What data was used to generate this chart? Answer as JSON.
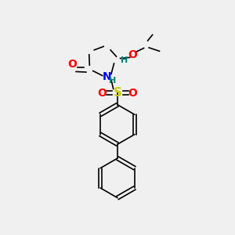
{
  "background_color": "#f0f0f0",
  "bond_color": "#000000",
  "atom_colors": {
    "N": "#0000ff",
    "O": "#ff0000",
    "S": "#cccc00",
    "H": "#008080",
    "C": "#000000"
  },
  "figsize": [
    3.0,
    3.0
  ],
  "dpi": 100
}
